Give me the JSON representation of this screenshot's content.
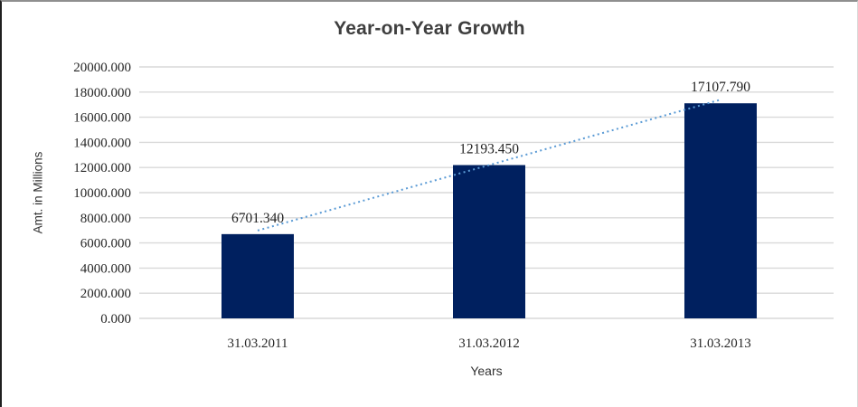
{
  "chart_data": {
    "type": "bar",
    "title": "Year-on-Year Growth",
    "xlabel": "Years",
    "ylabel": "Amt. in Millions",
    "categories": [
      "31.03.2011",
      "31.03.2012",
      "31.03.2013"
    ],
    "values": [
      6701.34,
      12193.45,
      17107.79
    ],
    "data_labels": [
      "6701.340",
      "12193.450",
      "17107.790"
    ],
    "ylim": [
      0,
      20000
    ],
    "ytick_step": 2000,
    "ytick_labels": [
      "0.000",
      "2000.000",
      "4000.000",
      "6000.000",
      "8000.000",
      "10000.000",
      "12000.000",
      "14000.000",
      "16000.000",
      "18000.000",
      "20000.000"
    ],
    "grid": true,
    "legend": "none",
    "trendline": {
      "style": "dotted",
      "from_category": 0,
      "to_category": 2
    },
    "colors": {
      "bar": "#00205F",
      "trendline": "#5B9BD5",
      "gridline": "#D9D9D9",
      "title_text": "#3F3F3F",
      "label_text": "#1F1F1F"
    }
  }
}
